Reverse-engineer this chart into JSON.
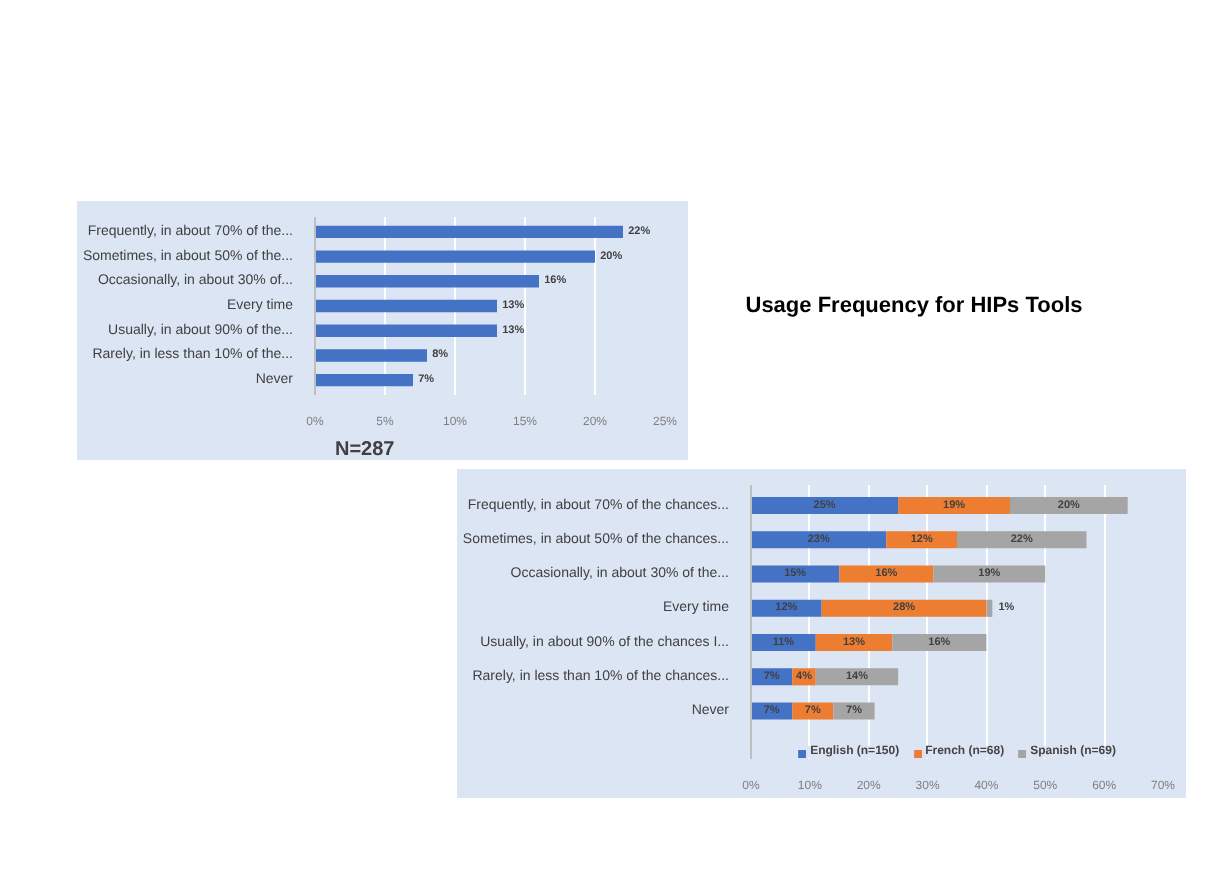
{
  "chart_data": [
    {
      "type": "bar",
      "orientation": "horizontal",
      "categories": [
        "Frequently, in about 70% of the...",
        "Sometimes, in about 50% of the...",
        "Occasionally, in about 30% of...",
        "Every time",
        "Usually, in about 90% of the...",
        "Rarely, in less than 10% of the...",
        "Never"
      ],
      "values": [
        22,
        20,
        16,
        13,
        13,
        8,
        7
      ],
      "color": "#4472c4",
      "value_labels": [
        "22%",
        "20%",
        "16%",
        "13%",
        "13%",
        "8%",
        "7%"
      ],
      "xlim": [
        0,
        25
      ],
      "xticks": [
        {
          "value": 0,
          "label": "0%"
        },
        {
          "value": 5,
          "label": "5%"
        },
        {
          "value": 10,
          "label": "10%"
        },
        {
          "value": 15,
          "label": "15%"
        },
        {
          "value": 20,
          "label": "20%"
        },
        {
          "value": 25,
          "label": "25%"
        }
      ],
      "grid": "x",
      "legend": false,
      "annotations": [
        "N=287"
      ]
    },
    {
      "type": "other",
      "title": "Usage Frequency for HIPs Tools"
    },
    {
      "type": "bar",
      "orientation": "horizontal",
      "stacked": true,
      "categories": [
        "Frequently, in about 70% of the chances...",
        "Sometimes, in about 50% of the chances...",
        "Occasionally, in about 30% of the...",
        "Every time",
        "Usually, in about 90% of the chances I...",
        "Rarely, in less than 10% of the chances...",
        "Never"
      ],
      "series": [
        {
          "name": "English (n=150)",
          "color": "#4472c4",
          "values": [
            25,
            23,
            15,
            12,
            11,
            7,
            7
          ],
          "value_labels": [
            "25%",
            "23%",
            "15%",
            "12%",
            "11%",
            "7%",
            "7%"
          ]
        },
        {
          "name": "French (n=68)",
          "color": "#ed7d31",
          "values": [
            19,
            12,
            16,
            28,
            13,
            4,
            7
          ],
          "value_labels": [
            "19%",
            "12%",
            "16%",
            "28%",
            "13%",
            "4%",
            "7%"
          ]
        },
        {
          "name": "Spanish (n=69)",
          "color": "#a5a5a5",
          "values": [
            20,
            22,
            19,
            1,
            16,
            14,
            7
          ],
          "value_labels": [
            "20%",
            "22%",
            "19%",
            "1%",
            "16%",
            "14%",
            "7%"
          ]
        }
      ],
      "xlim": [
        0,
        70
      ],
      "xticks": [
        {
          "value": 0,
          "label": "0%"
        },
        {
          "value": 10,
          "label": "10%"
        },
        {
          "value": 20,
          "label": "20%"
        },
        {
          "value": 30,
          "label": "30%"
        },
        {
          "value": 40,
          "label": "40%"
        },
        {
          "value": 50,
          "label": "50%"
        },
        {
          "value": 60,
          "label": "60%"
        },
        {
          "value": 70,
          "label": "70%"
        }
      ],
      "grid": "x",
      "legend": "bottom"
    }
  ]
}
